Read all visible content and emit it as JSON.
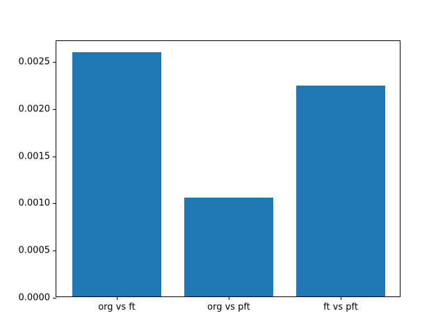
{
  "figure": {
    "background": "#ffffff",
    "spine_color": "#000000",
    "bar_color": "#1f77b4"
  },
  "chart_data": {
    "type": "bar",
    "title": "",
    "xlabel": "",
    "ylabel": "",
    "categories": [
      "org vs ft",
      "org vs pft",
      "ft vs pft"
    ],
    "values": [
      0.00259,
      0.00105,
      0.00223
    ],
    "ylim": [
      0,
      0.00272
    ],
    "xlim": [
      -0.54,
      2.54
    ],
    "bar_width_data_units": 0.8,
    "yticks": [
      0.0,
      0.0005,
      0.001,
      0.0015,
      0.002,
      0.0025
    ],
    "ytick_labels": [
      "0.0000",
      "0.0005",
      "0.0010",
      "0.0015",
      "0.0020",
      "0.0025"
    ],
    "grid": false,
    "legend": null
  }
}
